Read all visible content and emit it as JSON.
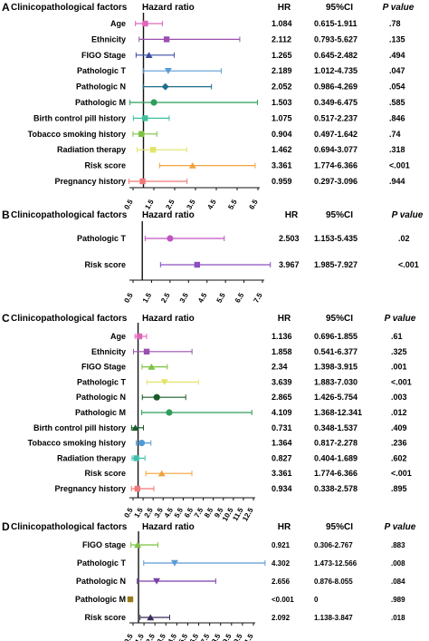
{
  "chart_data": [
    {
      "panel": "A",
      "type": "forest",
      "headers": {
        "factors": "Clinicopathological factors",
        "plot": "Hazard ratio",
        "hr": "HR",
        "ci": "95%CI",
        "p": "P value"
      },
      "ref_line": 1,
      "xlim": [
        0.5,
        6.5
      ],
      "xticks": [
        "0.5",
        "1.5",
        "2.5",
        "3.5",
        "4.5",
        "5.5",
        "6.5"
      ],
      "rows": [
        {
          "label": "Age",
          "hr": "1.084",
          "ci": "0.615-1.911",
          "p": ".78",
          "x": 1.084,
          "lo": 0.615,
          "hi": 1.911,
          "color": "#e066b8",
          "marker": "square"
        },
        {
          "label": "Ethnicity",
          "hr": "2.112",
          "ci": "0.793-5.627",
          "p": ".135",
          "x": 2.112,
          "lo": 0.793,
          "hi": 5.627,
          "color": "#9b4fb0",
          "marker": "square"
        },
        {
          "label": "FIGO Stage",
          "hr": "1.265",
          "ci": "0.645-2.482",
          "p": ".494",
          "x": 1.265,
          "lo": 0.645,
          "hi": 2.482,
          "color": "#3a4fa0",
          "marker": "triangle"
        },
        {
          "label": "Pathologic T",
          "hr": "2.189",
          "ci": "1.012-4.735",
          "p": ".047",
          "x": 2.189,
          "lo": 1.012,
          "hi": 4.735,
          "color": "#5b9bd5",
          "marker": "triangle-down"
        },
        {
          "label": "Pathologic N",
          "hr": "2.052",
          "ci": "0.986-4.269",
          "p": ".054",
          "x": 2.052,
          "lo": 0.986,
          "hi": 4.269,
          "color": "#1f6e8c",
          "marker": "diamond"
        },
        {
          "label": "Pathologic M",
          "hr": "1.503",
          "ci": "0.349-6.475",
          "p": ".585",
          "x": 1.503,
          "lo": 0.349,
          "hi": 6.475,
          "color": "#2e9e5b",
          "marker": "circle"
        },
        {
          "label": "Birth control pill history",
          "hr": "1.075",
          "ci": "0.517-2.237",
          "p": ".846",
          "x": 1.075,
          "lo": 0.517,
          "hi": 2.237,
          "color": "#3fbf9f",
          "marker": "square"
        },
        {
          "label": "Tobacco smoking history",
          "hr": "0.904",
          "ci": "0.497-1.642",
          "p": ".74",
          "x": 0.904,
          "lo": 0.497,
          "hi": 1.642,
          "color": "#7cc242",
          "marker": "square"
        },
        {
          "label": "Radiation therapy",
          "hr": "1.462",
          "ci": "0.694-3.077",
          "p": ".318",
          "x": 1.462,
          "lo": 0.694,
          "hi": 3.077,
          "color": "#e3e36a",
          "marker": "square"
        },
        {
          "label": "Risk score",
          "hr": "3.361",
          "ci": "1.774-6.366",
          "p": "<.001",
          "x": 3.361,
          "lo": 1.774,
          "hi": 6.366,
          "color": "#f0a33c",
          "marker": "triangle"
        },
        {
          "label": "Pregnancy history",
          "hr": "0.959",
          "ci": "0.297-3.096",
          "p": ".944",
          "x": 0.959,
          "lo": 0.297,
          "hi": 3.096,
          "color": "#f07878",
          "marker": "square"
        }
      ]
    },
    {
      "panel": "B",
      "type": "forest",
      "headers": {
        "factors": "Clinicopathological factors",
        "plot": "Hazard ratio",
        "hr": "HR",
        "ci": "95%CI",
        "p": "P value"
      },
      "ref_line": 1,
      "xlim": [
        0.5,
        7.5
      ],
      "xticks": [
        "0.5",
        "1.5",
        "2.5",
        "3.5",
        "4.5",
        "5.5",
        "6.5",
        "7.5"
      ],
      "rows": [
        {
          "label": "Pathologic T",
          "hr": "2.503",
          "ci": "1.153-5.435",
          "p": ".02",
          "x": 2.503,
          "lo": 1.153,
          "hi": 5.435,
          "color": "#c055c0",
          "marker": "circle"
        },
        {
          "label": "Risk score",
          "hr": "3.967",
          "ci": "1.985-7.927",
          "p": "<.001",
          "x": 3.967,
          "lo": 1.985,
          "hi": 7.927,
          "color": "#8a4fc0",
          "marker": "square"
        }
      ]
    },
    {
      "panel": "C",
      "type": "forest",
      "headers": {
        "factors": "Clinicopathological factors",
        "plot": "Hazard ratio",
        "hr": "HR",
        "ci": "95%CI",
        "p": "P value"
      },
      "ref_line": 1,
      "xlim": [
        0.5,
        12.5
      ],
      "xticks": [
        "0.5",
        "1.5",
        "2.5",
        "3.5",
        "4.5",
        "5.5",
        "6.5",
        "7.5",
        "8.5",
        "9.5",
        "10.5",
        "11.5",
        "12.5"
      ],
      "rows": [
        {
          "label": "Age",
          "hr": "1.136",
          "ci": "0.696-1.855",
          "p": ".61",
          "x": 1.136,
          "lo": 0.696,
          "hi": 1.855,
          "color": "#e066b8",
          "marker": "square"
        },
        {
          "label": "Ethnicity",
          "hr": "1.858",
          "ci": "0.541-6.377",
          "p": ".325",
          "x": 1.858,
          "lo": 0.541,
          "hi": 6.377,
          "color": "#9b4fb0",
          "marker": "square"
        },
        {
          "label": "FIGO Stage",
          "hr": "2.34",
          "ci": "1.398-3.915",
          "p": ".001",
          "x": 2.34,
          "lo": 1.398,
          "hi": 3.915,
          "color": "#7cc242",
          "marker": "triangle"
        },
        {
          "label": "Pathologic T",
          "hr": "3.639",
          "ci": "1.883-7.030",
          "p": "<.001",
          "x": 3.639,
          "lo": 1.883,
          "hi": 7.03,
          "color": "#e3e36a",
          "marker": "triangle-down"
        },
        {
          "label": "Pathologic N",
          "hr": "2.865",
          "ci": "1.426-5.754",
          "p": ".003",
          "x": 2.865,
          "lo": 1.426,
          "hi": 5.754,
          "color": "#1a5c2a",
          "marker": "circle"
        },
        {
          "label": "Pathologic M",
          "hr": "4.109",
          "ci": "1.368-12.341",
          "p": ".012",
          "x": 4.109,
          "lo": 1.368,
          "hi": 12.341,
          "color": "#2e9e5b",
          "marker": "circle"
        },
        {
          "label": "Birth control pill history",
          "hr": "0.731",
          "ci": "0.348-1.537",
          "p": ".409",
          "x": 0.731,
          "lo": 0.348,
          "hi": 1.537,
          "color": "#1a5c2a",
          "marker": "triangle"
        },
        {
          "label": "Tobacco smoking history",
          "hr": "1.364",
          "ci": "0.817-2.278",
          "p": ".236",
          "x": 1.364,
          "lo": 0.817,
          "hi": 2.278,
          "color": "#4f9bd5",
          "marker": "circle"
        },
        {
          "label": "Radiation therapy",
          "hr": "0.827",
          "ci": "0.404-1.689",
          "p": ".602",
          "x": 0.827,
          "lo": 0.404,
          "hi": 1.689,
          "color": "#3fbfaf",
          "marker": "square"
        },
        {
          "label": "Risk score",
          "hr": "3.361",
          "ci": "1.774-6.366",
          "p": "<.001",
          "x": 3.361,
          "lo": 1.774,
          "hi": 6.366,
          "color": "#f0a33c",
          "marker": "triangle"
        },
        {
          "label": "Pregnancy history",
          "hr": "0.934",
          "ci": "0.338-2.578",
          "p": ".895",
          "x": 0.934,
          "lo": 0.338,
          "hi": 2.578,
          "color": "#f07878",
          "marker": "square"
        }
      ]
    },
    {
      "panel": "D",
      "type": "forest",
      "headers": {
        "factors": "Clinicopathological factors",
        "plot": "Hazard ratio",
        "hr": "HR",
        "ci": "95%CI",
        "p": "P value"
      },
      "ref_line": 1,
      "xlim": [
        0.5,
        11.5
      ],
      "xticks": [
        "0.5",
        "1.5",
        "2.5",
        "3.5",
        "4.5",
        "5.5",
        "6.5",
        "7.5",
        "8.5",
        "9.5",
        "10.5",
        "11.5"
      ],
      "rows": [
        {
          "label": "FIGO stage",
          "hr": "0.921",
          "ci": "0.306-2.767",
          "p": ".883",
          "x": 0.921,
          "lo": 0.306,
          "hi": 2.767,
          "color": "#7cc242",
          "marker": "triangle"
        },
        {
          "label": "Pathologic T",
          "hr": "4.302",
          "ci": "1.473-12.566",
          "p": ".008",
          "x": 4.302,
          "lo": 1.473,
          "hi": 12.566,
          "color": "#5b9bd5",
          "marker": "triangle-down"
        },
        {
          "label": "Pathologic N",
          "hr": "2.656",
          "ci": "0.876-8.055",
          "p": ".084",
          "x": 2.656,
          "lo": 0.876,
          "hi": 8.055,
          "color": "#7a3fa8",
          "marker": "triangle-down"
        },
        {
          "label": "Pathologic M",
          "hr": "<0.001",
          "ci": "0",
          "p": ".989",
          "x": null,
          "lo": null,
          "hi": null,
          "color": "#9a7a1a",
          "marker": "square"
        },
        {
          "label": "Risk score",
          "hr": "2.092",
          "ci": "1.138-3.847",
          "p": ".018",
          "x": 2.092,
          "lo": 1.138,
          "hi": 3.847,
          "color": "#3a2a5a",
          "marker": "triangle"
        }
      ]
    }
  ]
}
